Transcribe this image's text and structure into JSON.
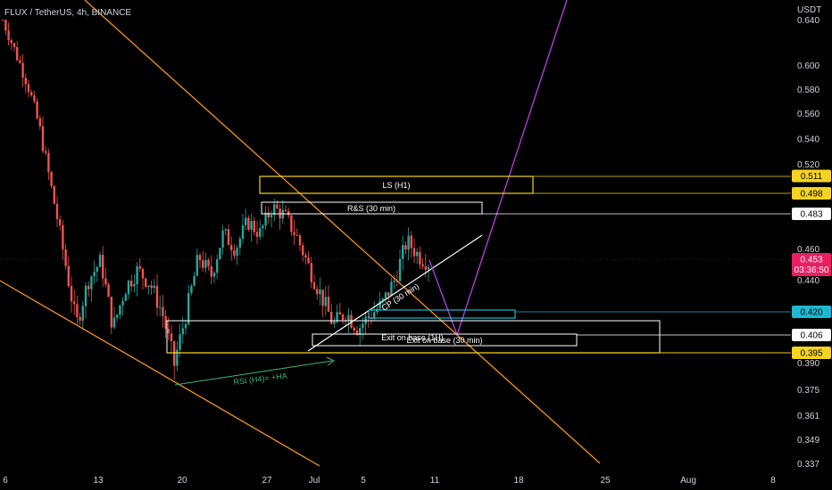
{
  "header": {
    "symbol": "FLUX / TetherUS, 4h, BINANCE"
  },
  "axis": {
    "currency": "USDT"
  },
  "colors": {
    "up": "#26a69a",
    "down": "#ef5350",
    "orange": "#f7931a",
    "zone_yellow": "#f5d321",
    "zone_white": "#ffffff",
    "zone_cyan": "#1fb8d1",
    "projection": "#b23ad6",
    "rsi": "#3db37a",
    "last": "#e91e63"
  },
  "chart_data": {
    "type": "candlestick",
    "title": "FLUX / TetherUS, 4h, BINANCE",
    "ylabel": "USDT",
    "y_ticks": [
      "0.640",
      "0.600",
      "0.580",
      "0.560",
      "0.540",
      "0.520",
      "0.498",
      "0.460",
      "0.440",
      "0.390",
      "0.375",
      "0.361",
      "0.349",
      "0.337"
    ],
    "x_ticks": [
      "6",
      "13",
      "20",
      "27",
      "Jul",
      "5",
      "11",
      "18",
      "25",
      "Aug",
      "8"
    ],
    "price_badges": [
      {
        "value": "0.511",
        "color": "yellow"
      },
      {
        "value": "0.498",
        "color": "yellow"
      },
      {
        "value": "0.483",
        "color": "white"
      },
      {
        "value": "0.453",
        "sub": "03:36:50",
        "color": "red"
      },
      {
        "value": "0.420",
        "color": "cyan"
      },
      {
        "value": "0.406",
        "color": "white"
      },
      {
        "value": "0.395",
        "color": "yellow"
      }
    ],
    "zones": [
      {
        "label": "LS (H1)",
        "top": 0.511,
        "bottom": 0.498,
        "color": "yellow"
      },
      {
        "label": "R&S (30 min)",
        "top": 0.487,
        "bottom": 0.48,
        "color": "white"
      },
      {
        "label": "Exit on base (1H)",
        "top": 0.413,
        "bottom": 0.395,
        "color": "white"
      },
      {
        "label": "Exit on base (30 min)",
        "top": 0.406,
        "bottom": 0.401,
        "color": "white"
      },
      {
        "label": "",
        "top": 0.421,
        "bottom": 0.419,
        "color": "cyan"
      }
    ],
    "annotations": [
      "CP (30 min)",
      "RSI (H4)= +HA"
    ],
    "price_path": [
      [
        0.64,
        0.612
      ],
      [
        0.612,
        0.585
      ],
      [
        0.585,
        0.548
      ],
      [
        0.548,
        0.5
      ],
      [
        0.5,
        0.455
      ],
      [
        0.455,
        0.412
      ],
      [
        0.412,
        0.44
      ],
      [
        0.44,
        0.452
      ],
      [
        0.452,
        0.41
      ],
      [
        0.41,
        0.435
      ],
      [
        0.435,
        0.446
      ],
      [
        0.446,
        0.438
      ],
      [
        0.438,
        0.42
      ],
      [
        0.42,
        0.389
      ],
      [
        0.389,
        0.42
      ],
      [
        0.42,
        0.455
      ],
      [
        0.455,
        0.442
      ],
      [
        0.442,
        0.47
      ],
      [
        0.47,
        0.46
      ],
      [
        0.46,
        0.478
      ],
      [
        0.478,
        0.47
      ],
      [
        0.47,
        0.488
      ],
      [
        0.488,
        0.482
      ],
      [
        0.482,
        0.468
      ],
      [
        0.468,
        0.448
      ],
      [
        0.448,
        0.43
      ],
      [
        0.43,
        0.412
      ],
      [
        0.412,
        0.42
      ],
      [
        0.42,
        0.41
      ],
      [
        0.41,
        0.418
      ],
      [
        0.418,
        0.425
      ],
      [
        0.425,
        0.44
      ],
      [
        0.44,
        0.465
      ],
      [
        0.465,
        0.455
      ],
      [
        0.455,
        0.45
      ]
    ]
  }
}
